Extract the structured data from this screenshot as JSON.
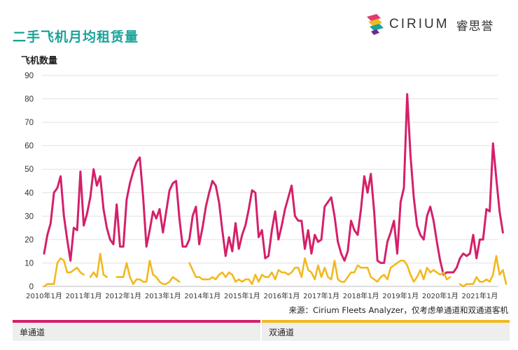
{
  "title": "二手飞机月均租赁量",
  "logo": {
    "brand": "CIRIUM",
    "cn": "睿思誉",
    "icon": "cirium-logo-icon"
  },
  "source_note": "来源：Cirium Fleets Analyzer，仅考虑单通道和双通道客机",
  "colors": {
    "title": "#1aa39a",
    "single_aisle": "#d4206a",
    "twin_aisle": "#f2b81f"
  },
  "chart_data": {
    "type": "line",
    "ylabel": "飞机数量",
    "ylim": [
      0,
      90
    ],
    "yticks": [
      0,
      10,
      20,
      30,
      40,
      50,
      60,
      70,
      80,
      90
    ],
    "xtick_labels": [
      "2010年1月",
      "2011年1月",
      "2012年1月",
      "2013年1月",
      "2014年1月",
      "2015年1月",
      "2016年1月",
      "2017年1月",
      "2018年1月",
      "2019年1月",
      "2020年1月",
      "2021年1月"
    ],
    "x_start": "2010-01",
    "frequency": "monthly",
    "grid": true,
    "legend_position": "bottom",
    "series": [
      {
        "name": "单通道",
        "values": [
          14,
          22,
          27,
          40,
          42,
          47,
          30,
          20,
          11,
          25,
          24,
          49,
          26,
          31,
          38,
          50,
          43,
          47,
          33,
          25,
          20,
          18,
          35,
          17,
          17,
          37,
          44,
          49,
          53,
          55,
          38,
          17,
          24,
          32,
          29,
          33,
          23,
          32,
          41,
          44,
          45,
          29,
          17,
          17,
          20,
          30,
          34,
          18,
          25,
          34,
          40,
          45,
          43,
          36,
          24,
          13,
          21,
          15,
          27,
          16,
          22,
          26,
          33,
          41,
          40,
          21,
          24,
          12,
          13,
          24,
          32,
          20,
          26,
          33,
          38,
          43,
          30,
          28,
          28,
          16,
          24,
          14,
          22,
          19,
          20,
          34,
          36,
          38,
          30,
          19,
          14,
          11,
          15,
          28,
          24,
          22,
          33,
          47,
          40,
          48,
          32,
          11,
          10,
          10,
          19,
          23,
          28,
          14,
          36,
          42,
          82,
          56,
          38,
          26,
          22,
          20,
          30,
          34,
          28,
          19,
          11,
          5,
          6,
          6,
          6,
          8,
          12,
          14,
          13,
          14,
          22,
          12,
          20,
          20,
          33,
          32,
          61,
          46,
          32,
          23
        ],
        "gaps": []
      },
      {
        "name": "双通道",
        "values": [
          0,
          1,
          1,
          1,
          10,
          12,
          11,
          6,
          6,
          7,
          8,
          6,
          5,
          5,
          4,
          6,
          4,
          14,
          5,
          4,
          1,
          3,
          4,
          4,
          4,
          10,
          4,
          1,
          3,
          3,
          2,
          2,
          11,
          5,
          4,
          2,
          1,
          1,
          2,
          4,
          3,
          2,
          7,
          8,
          10,
          7,
          4,
          4,
          3,
          3,
          3,
          4,
          3,
          5,
          6,
          4,
          6,
          5,
          2,
          3,
          2,
          3,
          3,
          1,
          5,
          2,
          5,
          4,
          4,
          6,
          3,
          7,
          6,
          6,
          5,
          6,
          8,
          8,
          4,
          12,
          7,
          6,
          3,
          9,
          4,
          8,
          4,
          3,
          11,
          3,
          2,
          2,
          4,
          6,
          6,
          9,
          8,
          8,
          8,
          4,
          3,
          2,
          4,
          5,
          3,
          8,
          9,
          10,
          11,
          11,
          9,
          5,
          2,
          4,
          7,
          3,
          8,
          6,
          7,
          6,
          5,
          6,
          3,
          4,
          4,
          2,
          1,
          0,
          1,
          1,
          1,
          4,
          2,
          2,
          3,
          2,
          5,
          13,
          5,
          7,
          1
        ],
        "gaps": [
          13,
          20,
          21,
          42,
          43,
          124,
          125
        ]
      }
    ]
  }
}
